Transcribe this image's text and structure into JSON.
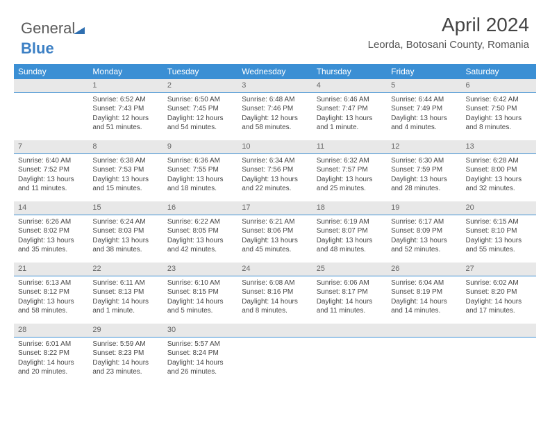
{
  "logo": {
    "part1": "General",
    "part2": "Blue"
  },
  "header": {
    "title": "April 2024",
    "location": "Leorda, Botosani County, Romania"
  },
  "style": {
    "header_bg": "#3b8fd4",
    "header_fg": "#ffffff",
    "daynum_bg": "#e8e8e8",
    "cell_divider": "#3b8fd4",
    "title_fontsize": 28,
    "location_fontsize": 15,
    "th_fontsize": 12,
    "cell_fontsize": 10
  },
  "weekdays": [
    "Sunday",
    "Monday",
    "Tuesday",
    "Wednesday",
    "Thursday",
    "Friday",
    "Saturday"
  ],
  "weeks": [
    [
      null,
      {
        "day": "1",
        "sunrise": "Sunrise: 6:52 AM",
        "sunset": "Sunset: 7:43 PM",
        "d1": "Daylight: 12 hours",
        "d2": "and 51 minutes."
      },
      {
        "day": "2",
        "sunrise": "Sunrise: 6:50 AM",
        "sunset": "Sunset: 7:45 PM",
        "d1": "Daylight: 12 hours",
        "d2": "and 54 minutes."
      },
      {
        "day": "3",
        "sunrise": "Sunrise: 6:48 AM",
        "sunset": "Sunset: 7:46 PM",
        "d1": "Daylight: 12 hours",
        "d2": "and 58 minutes."
      },
      {
        "day": "4",
        "sunrise": "Sunrise: 6:46 AM",
        "sunset": "Sunset: 7:47 PM",
        "d1": "Daylight: 13 hours",
        "d2": "and 1 minute."
      },
      {
        "day": "5",
        "sunrise": "Sunrise: 6:44 AM",
        "sunset": "Sunset: 7:49 PM",
        "d1": "Daylight: 13 hours",
        "d2": "and 4 minutes."
      },
      {
        "day": "6",
        "sunrise": "Sunrise: 6:42 AM",
        "sunset": "Sunset: 7:50 PM",
        "d1": "Daylight: 13 hours",
        "d2": "and 8 minutes."
      }
    ],
    [
      {
        "day": "7",
        "sunrise": "Sunrise: 6:40 AM",
        "sunset": "Sunset: 7:52 PM",
        "d1": "Daylight: 13 hours",
        "d2": "and 11 minutes."
      },
      {
        "day": "8",
        "sunrise": "Sunrise: 6:38 AM",
        "sunset": "Sunset: 7:53 PM",
        "d1": "Daylight: 13 hours",
        "d2": "and 15 minutes."
      },
      {
        "day": "9",
        "sunrise": "Sunrise: 6:36 AM",
        "sunset": "Sunset: 7:55 PM",
        "d1": "Daylight: 13 hours",
        "d2": "and 18 minutes."
      },
      {
        "day": "10",
        "sunrise": "Sunrise: 6:34 AM",
        "sunset": "Sunset: 7:56 PM",
        "d1": "Daylight: 13 hours",
        "d2": "and 22 minutes."
      },
      {
        "day": "11",
        "sunrise": "Sunrise: 6:32 AM",
        "sunset": "Sunset: 7:57 PM",
        "d1": "Daylight: 13 hours",
        "d2": "and 25 minutes."
      },
      {
        "day": "12",
        "sunrise": "Sunrise: 6:30 AM",
        "sunset": "Sunset: 7:59 PM",
        "d1": "Daylight: 13 hours",
        "d2": "and 28 minutes."
      },
      {
        "day": "13",
        "sunrise": "Sunrise: 6:28 AM",
        "sunset": "Sunset: 8:00 PM",
        "d1": "Daylight: 13 hours",
        "d2": "and 32 minutes."
      }
    ],
    [
      {
        "day": "14",
        "sunrise": "Sunrise: 6:26 AM",
        "sunset": "Sunset: 8:02 PM",
        "d1": "Daylight: 13 hours",
        "d2": "and 35 minutes."
      },
      {
        "day": "15",
        "sunrise": "Sunrise: 6:24 AM",
        "sunset": "Sunset: 8:03 PM",
        "d1": "Daylight: 13 hours",
        "d2": "and 38 minutes."
      },
      {
        "day": "16",
        "sunrise": "Sunrise: 6:22 AM",
        "sunset": "Sunset: 8:05 PM",
        "d1": "Daylight: 13 hours",
        "d2": "and 42 minutes."
      },
      {
        "day": "17",
        "sunrise": "Sunrise: 6:21 AM",
        "sunset": "Sunset: 8:06 PM",
        "d1": "Daylight: 13 hours",
        "d2": "and 45 minutes."
      },
      {
        "day": "18",
        "sunrise": "Sunrise: 6:19 AM",
        "sunset": "Sunset: 8:07 PM",
        "d1": "Daylight: 13 hours",
        "d2": "and 48 minutes."
      },
      {
        "day": "19",
        "sunrise": "Sunrise: 6:17 AM",
        "sunset": "Sunset: 8:09 PM",
        "d1": "Daylight: 13 hours",
        "d2": "and 52 minutes."
      },
      {
        "day": "20",
        "sunrise": "Sunrise: 6:15 AM",
        "sunset": "Sunset: 8:10 PM",
        "d1": "Daylight: 13 hours",
        "d2": "and 55 minutes."
      }
    ],
    [
      {
        "day": "21",
        "sunrise": "Sunrise: 6:13 AM",
        "sunset": "Sunset: 8:12 PM",
        "d1": "Daylight: 13 hours",
        "d2": "and 58 minutes."
      },
      {
        "day": "22",
        "sunrise": "Sunrise: 6:11 AM",
        "sunset": "Sunset: 8:13 PM",
        "d1": "Daylight: 14 hours",
        "d2": "and 1 minute."
      },
      {
        "day": "23",
        "sunrise": "Sunrise: 6:10 AM",
        "sunset": "Sunset: 8:15 PM",
        "d1": "Daylight: 14 hours",
        "d2": "and 5 minutes."
      },
      {
        "day": "24",
        "sunrise": "Sunrise: 6:08 AM",
        "sunset": "Sunset: 8:16 PM",
        "d1": "Daylight: 14 hours",
        "d2": "and 8 minutes."
      },
      {
        "day": "25",
        "sunrise": "Sunrise: 6:06 AM",
        "sunset": "Sunset: 8:17 PM",
        "d1": "Daylight: 14 hours",
        "d2": "and 11 minutes."
      },
      {
        "day": "26",
        "sunrise": "Sunrise: 6:04 AM",
        "sunset": "Sunset: 8:19 PM",
        "d1": "Daylight: 14 hours",
        "d2": "and 14 minutes."
      },
      {
        "day": "27",
        "sunrise": "Sunrise: 6:02 AM",
        "sunset": "Sunset: 8:20 PM",
        "d1": "Daylight: 14 hours",
        "d2": "and 17 minutes."
      }
    ],
    [
      {
        "day": "28",
        "sunrise": "Sunrise: 6:01 AM",
        "sunset": "Sunset: 8:22 PM",
        "d1": "Daylight: 14 hours",
        "d2": "and 20 minutes."
      },
      {
        "day": "29",
        "sunrise": "Sunrise: 5:59 AM",
        "sunset": "Sunset: 8:23 PM",
        "d1": "Daylight: 14 hours",
        "d2": "and 23 minutes."
      },
      {
        "day": "30",
        "sunrise": "Sunrise: 5:57 AM",
        "sunset": "Sunset: 8:24 PM",
        "d1": "Daylight: 14 hours",
        "d2": "and 26 minutes."
      },
      null,
      null,
      null,
      null
    ]
  ]
}
